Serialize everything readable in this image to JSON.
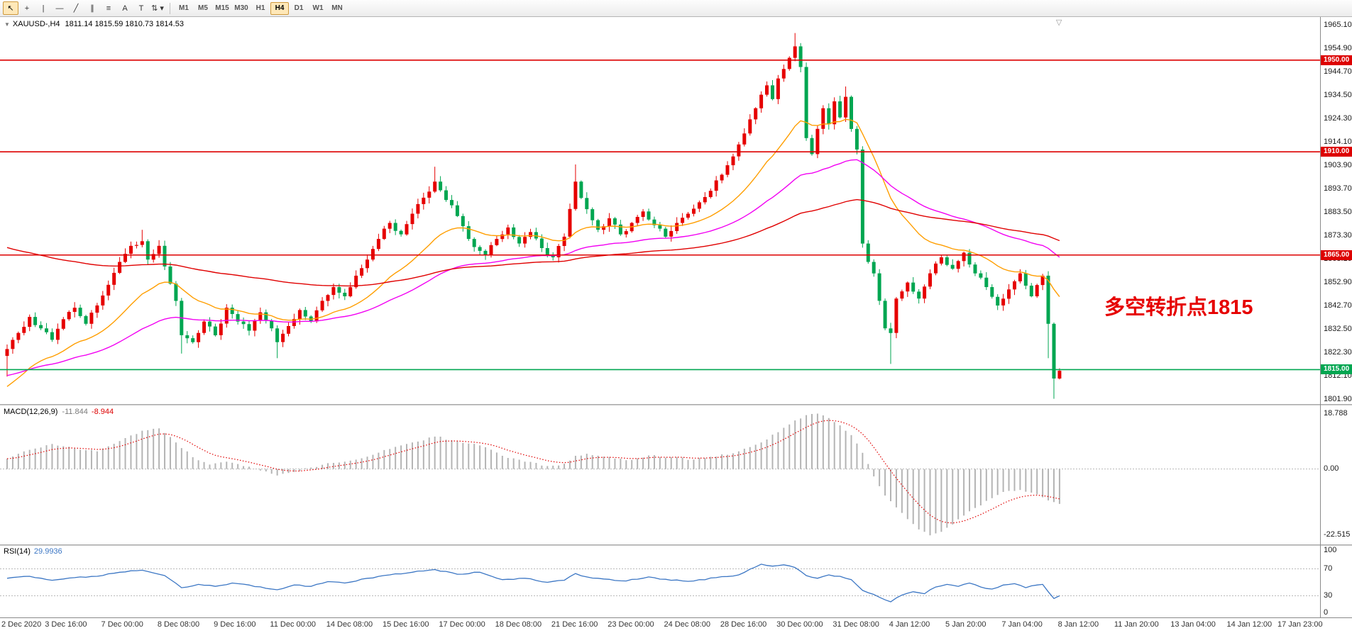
{
  "toolbar": {
    "tools": [
      {
        "name": "cursor",
        "glyph": "↖",
        "active": true
      },
      {
        "name": "crosshair",
        "glyph": "+",
        "active": false
      },
      {
        "name": "vertical-line",
        "glyph": "|",
        "active": false
      },
      {
        "name": "horizontal-line",
        "glyph": "—",
        "active": false
      },
      {
        "name": "trendline",
        "glyph": "╱",
        "active": false
      },
      {
        "name": "equidistant-channel",
        "glyph": "∥",
        "active": false
      },
      {
        "name": "fibonacci-retracement",
        "glyph": "≡",
        "active": false
      },
      {
        "name": "text",
        "glyph": "A",
        "active": false
      },
      {
        "name": "arrows",
        "glyph": "T",
        "active": false
      },
      {
        "name": "indicators",
        "glyph": "⇅",
        "caret": true,
        "active": false
      }
    ],
    "timeframes": [
      {
        "label": "M1"
      },
      {
        "label": "M5"
      },
      {
        "label": "M15"
      },
      {
        "label": "M30"
      },
      {
        "label": "H1"
      },
      {
        "label": "H4",
        "active": true
      },
      {
        "label": "D1"
      },
      {
        "label": "W1"
      },
      {
        "label": "MN"
      }
    ]
  },
  "chart": {
    "symbol_period": "XAUUSD-,H4",
    "ohlc_line": "1811.14 1815.59 1810.73 1814.53",
    "annotation": {
      "text": "多空转折点1815",
      "color": "#e60000"
    }
  },
  "macd": {
    "label": "MACD(12,26,9)",
    "value_main": "-11.844",
    "value_signal": "-8.944",
    "ticks": [
      {
        "v": 18.788,
        "t": "18.788"
      },
      {
        "v": 0,
        "t": "0.00"
      },
      {
        "v": -22.515,
        "t": "-22.515"
      }
    ]
  },
  "rsi": {
    "label": "RSI(14)",
    "value": "29.9936",
    "levels": [
      70,
      30
    ],
    "ticks": [
      {
        "v": 100,
        "t": "100"
      },
      {
        "v": 70,
        "t": "70"
      },
      {
        "v": 30,
        "t": "30"
      },
      {
        "v": 0,
        "t": "0"
      }
    ]
  },
  "time_axis": {
    "labels": [
      "2 Dec 2020",
      "3 Dec 16:00",
      "7 Dec 00:00",
      "8 Dec 08:00",
      "9 Dec 16:00",
      "11 Dec 00:00",
      "14 Dec 08:00",
      "15 Dec 16:00",
      "17 Dec 00:00",
      "18 Dec 08:00",
      "21 Dec 16:00",
      "23 Dec 00:00",
      "24 Dec 08:00",
      "28 Dec 16:00",
      "30 Dec 00:00",
      "31 Dec 08:00",
      "4 Jan 12:00",
      "5 Jan 20:00",
      "7 Jan 04:00",
      "8 Jan 12:00",
      "11 Jan 20:00",
      "13 Jan 04:00",
      "14 Jan 12:00",
      "17 Jan 23:00"
    ]
  },
  "chart_data": {
    "type": "candlestick",
    "symbol": "XAUUSD",
    "timeframe": "H4",
    "bars_total": 188,
    "y_axis_range": [
      1800.0,
      1968.8
    ],
    "price_ticks": [
      1965.1,
      1954.9,
      1944.7,
      1934.5,
      1924.3,
      1914.1,
      1903.9,
      1893.7,
      1883.5,
      1873.3,
      1863.1,
      1852.9,
      1842.7,
      1832.5,
      1822.3,
      1812.1,
      1801.9
    ],
    "horizontal_levels": [
      {
        "price": 1950.0,
        "label": "1950.00",
        "color": "#dd0000"
      },
      {
        "price": 1910.0,
        "label": "1910.00",
        "color": "#dd0000"
      },
      {
        "price": 1865.0,
        "label": "1865.00",
        "color": "#dd0000"
      },
      {
        "price": 1815.0,
        "label": "1815.00",
        "color": "#00a651"
      }
    ],
    "colors": {
      "up": "#e60000",
      "down": "#00a651",
      "macd_hist": "#b4b4b4",
      "macd_signal": "#e00000",
      "rsi": "#3b76c4"
    },
    "moving_averages": [
      {
        "period": 21,
        "color": "#ff9e00",
        "init": 1806
      },
      {
        "period": 55,
        "color": "#f200f2",
        "init": 1812
      },
      {
        "period": 120,
        "color": "#e00000",
        "init": 1869
      }
    ],
    "last_bar": {
      "open": 1811.14,
      "high": 1815.59,
      "low": 1810.73,
      "close": 1814.53
    },
    "price_path_anchors": [
      [
        0,
        1824
      ],
      [
        2,
        1831
      ],
      [
        4,
        1838
      ],
      [
        6,
        1833
      ],
      [
        8,
        1828
      ],
      [
        10,
        1837
      ],
      [
        12,
        1842
      ],
      [
        14,
        1835
      ],
      [
        16,
        1843
      ],
      [
        18,
        1852
      ],
      [
        20,
        1862
      ],
      [
        22,
        1869
      ],
      [
        24,
        1871
      ],
      [
        25,
        1863
      ],
      [
        27,
        1869
      ],
      [
        28,
        1860
      ],
      [
        30,
        1845
      ],
      [
        31,
        1830
      ],
      [
        33,
        1827
      ],
      [
        35,
        1836
      ],
      [
        37,
        1830
      ],
      [
        39,
        1842
      ],
      [
        41,
        1836
      ],
      [
        43,
        1832
      ],
      [
        45,
        1840
      ],
      [
        47,
        1833
      ],
      [
        48,
        1827
      ],
      [
        50,
        1834
      ],
      [
        52,
        1841
      ],
      [
        54,
        1836
      ],
      [
        56,
        1845
      ],
      [
        58,
        1851
      ],
      [
        60,
        1847
      ],
      [
        62,
        1856
      ],
      [
        64,
        1863
      ],
      [
        66,
        1872
      ],
      [
        68,
        1879
      ],
      [
        70,
        1874
      ],
      [
        72,
        1883
      ],
      [
        74,
        1890
      ],
      [
        76,
        1897
      ],
      [
        78,
        1889
      ],
      [
        80,
        1882
      ],
      [
        82,
        1872
      ],
      [
        85,
        1865
      ],
      [
        87,
        1872
      ],
      [
        89,
        1877
      ],
      [
        91,
        1870
      ],
      [
        93,
        1875
      ],
      [
        95,
        1868
      ],
      [
        97,
        1864
      ],
      [
        99,
        1873
      ],
      [
        101,
        1897
      ],
      [
        103,
        1885
      ],
      [
        105,
        1876
      ],
      [
        107,
        1881
      ],
      [
        109,
        1874
      ],
      [
        111,
        1879
      ],
      [
        113,
        1884
      ],
      [
        115,
        1878
      ],
      [
        117,
        1873
      ],
      [
        119,
        1879
      ],
      [
        121,
        1883
      ],
      [
        123,
        1888
      ],
      [
        125,
        1893
      ],
      [
        127,
        1900
      ],
      [
        129,
        1908
      ],
      [
        131,
        1918
      ],
      [
        133,
        1929
      ],
      [
        135,
        1939
      ],
      [
        136,
        1933
      ],
      [
        137,
        1942
      ],
      [
        139,
        1951
      ],
      [
        140,
        1956
      ],
      [
        141,
        1947
      ],
      [
        142,
        1916
      ],
      [
        143,
        1909
      ],
      [
        144,
        1920
      ],
      [
        145,
        1929
      ],
      [
        146,
        1922
      ],
      [
        147,
        1932
      ],
      [
        148,
        1925
      ],
      [
        149,
        1934
      ],
      [
        150,
        1920
      ],
      [
        151,
        1911
      ],
      [
        152,
        1870
      ],
      [
        153,
        1862
      ],
      [
        154,
        1857
      ],
      [
        155,
        1845
      ],
      [
        156,
        1833
      ],
      [
        157,
        1831
      ],
      [
        158,
        1846
      ],
      [
        160,
        1853
      ],
      [
        162,
        1846
      ],
      [
        164,
        1857
      ],
      [
        166,
        1864
      ],
      [
        168,
        1859
      ],
      [
        170,
        1866
      ],
      [
        172,
        1857
      ],
      [
        174,
        1851
      ],
      [
        176,
        1843
      ],
      [
        178,
        1850
      ],
      [
        180,
        1857
      ],
      [
        182,
        1847
      ],
      [
        184,
        1856
      ],
      [
        185,
        1835
      ],
      [
        186,
        1811.14
      ],
      [
        187,
        1814.53
      ]
    ],
    "wick_high_overrides": [
      [
        24,
        1876
      ],
      [
        76,
        1903.5
      ],
      [
        101,
        1904.5
      ],
      [
        140,
        1961.8
      ],
      [
        149,
        1938.5
      ]
    ],
    "wick_low_overrides": [
      [
        0,
        1812
      ],
      [
        31,
        1822
      ],
      [
        48,
        1820
      ],
      [
        157,
        1817.5
      ],
      [
        185,
        1820
      ],
      [
        186,
        1802.3
      ]
    ],
    "signal_period": 9,
    "macd_anchors": [
      [
        0,
        3.5
      ],
      [
        4,
        6.5
      ],
      [
        8,
        8.5
      ],
      [
        12,
        7
      ],
      [
        16,
        6
      ],
      [
        20,
        9.5
      ],
      [
        24,
        13
      ],
      [
        27,
        13.8
      ],
      [
        30,
        9
      ],
      [
        33,
        4
      ],
      [
        36,
        1.5
      ],
      [
        39,
        2.5
      ],
      [
        42,
        1
      ],
      [
        45,
        -0.5
      ],
      [
        48,
        -2.2
      ],
      [
        51,
        -1
      ],
      [
        54,
        0.5
      ],
      [
        57,
        2
      ],
      [
        60,
        2.5
      ],
      [
        64,
        4.2
      ],
      [
        68,
        6.8
      ],
      [
        72,
        9
      ],
      [
        76,
        11
      ],
      [
        80,
        9.5
      ],
      [
        84,
        8
      ],
      [
        88,
        4.5
      ],
      [
        92,
        2.5
      ],
      [
        96,
        1
      ],
      [
        99,
        1.8
      ],
      [
        101,
        4.5
      ],
      [
        103,
        5.2
      ],
      [
        106,
        4.2
      ],
      [
        110,
        3
      ],
      [
        114,
        4.6
      ],
      [
        118,
        4
      ],
      [
        122,
        3.2
      ],
      [
        126,
        4.2
      ],
      [
        130,
        6
      ],
      [
        134,
        9
      ],
      [
        137,
        12.5
      ],
      [
        140,
        16.5
      ],
      [
        142,
        18.3
      ],
      [
        144,
        18.788
      ],
      [
        146,
        17.3
      ],
      [
        148,
        14.8
      ],
      [
        150,
        11.5
      ],
      [
        152,
        5.5
      ],
      [
        154,
        -2.5
      ],
      [
        156,
        -9
      ],
      [
        158,
        -13
      ],
      [
        160,
        -17
      ],
      [
        162,
        -20.5
      ],
      [
        164,
        -22.515
      ],
      [
        166,
        -21.3
      ],
      [
        168,
        -18.8
      ],
      [
        170,
        -15.8
      ],
      [
        172,
        -13.2
      ],
      [
        174,
        -10.8
      ],
      [
        176,
        -8.8
      ],
      [
        178,
        -7.4
      ],
      [
        180,
        -7.1
      ],
      [
        182,
        -8
      ],
      [
        184,
        -9.6
      ],
      [
        186,
        -11.2
      ],
      [
        187,
        -11.844
      ]
    ],
    "rsi_anchors": [
      [
        0,
        56
      ],
      [
        4,
        59
      ],
      [
        8,
        53
      ],
      [
        12,
        57
      ],
      [
        16,
        59
      ],
      [
        20,
        65
      ],
      [
        24,
        68
      ],
      [
        28,
        60
      ],
      [
        31,
        42
      ],
      [
        34,
        47
      ],
      [
        37,
        44
      ],
      [
        40,
        49
      ],
      [
        43,
        46
      ],
      [
        46,
        41
      ],
      [
        48,
        39
      ],
      [
        51,
        46
      ],
      [
        54,
        44
      ],
      [
        57,
        51
      ],
      [
        60,
        49
      ],
      [
        64,
        56
      ],
      [
        68,
        61
      ],
      [
        72,
        65
      ],
      [
        76,
        69
      ],
      [
        80,
        62
      ],
      [
        84,
        65
      ],
      [
        88,
        54
      ],
      [
        92,
        56
      ],
      [
        96,
        50
      ],
      [
        99,
        53
      ],
      [
        101,
        63
      ],
      [
        103,
        58
      ],
      [
        106,
        55
      ],
      [
        110,
        52
      ],
      [
        114,
        58
      ],
      [
        118,
        53
      ],
      [
        122,
        52
      ],
      [
        126,
        57
      ],
      [
        130,
        61
      ],
      [
        134,
        77
      ],
      [
        136,
        74
      ],
      [
        138,
        76
      ],
      [
        140,
        72
      ],
      [
        142,
        60
      ],
      [
        144,
        56
      ],
      [
        146,
        61
      ],
      [
        148,
        59
      ],
      [
        150,
        54
      ],
      [
        152,
        38
      ],
      [
        154,
        32
      ],
      [
        156,
        24
      ],
      [
        157,
        21
      ],
      [
        159,
        31
      ],
      [
        161,
        36
      ],
      [
        163,
        33
      ],
      [
        165,
        43
      ],
      [
        167,
        47
      ],
      [
        169,
        44
      ],
      [
        171,
        49
      ],
      [
        173,
        43
      ],
      [
        175,
        40
      ],
      [
        177,
        46
      ],
      [
        179,
        48
      ],
      [
        181,
        42
      ],
      [
        183,
        46
      ],
      [
        184,
        47
      ],
      [
        185,
        36
      ],
      [
        186,
        26
      ],
      [
        187,
        29.99
      ]
    ]
  }
}
